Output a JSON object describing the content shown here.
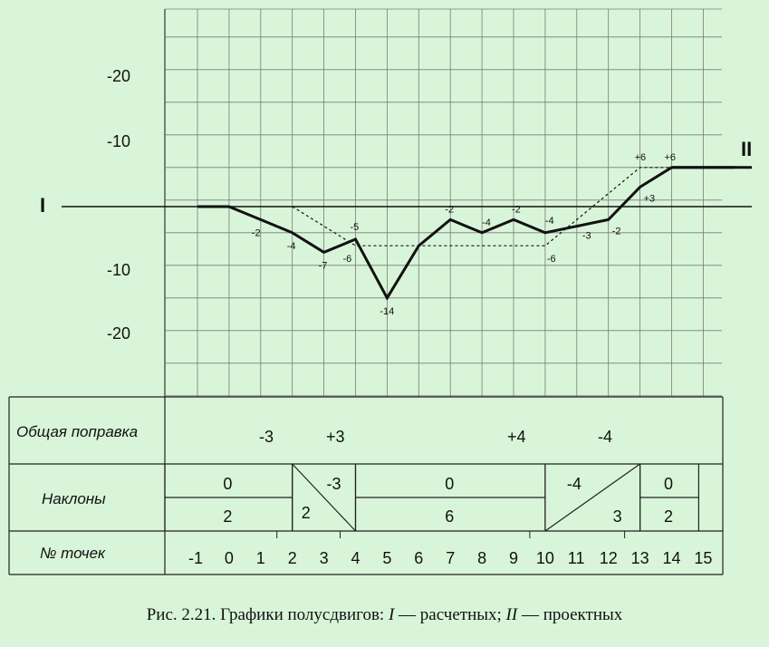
{
  "chart_data": {
    "type": "line",
    "y_ticks": [
      "-20",
      "-10",
      "-10",
      "-20"
    ],
    "line_labels": {
      "calculated": "I",
      "design": "II"
    },
    "x": [
      -1,
      0,
      1,
      2,
      3,
      4,
      5,
      6,
      7,
      8,
      9,
      10,
      11,
      12,
      13,
      14,
      15
    ],
    "series": [
      {
        "name": "I",
        "style": "solid",
        "points": [
          [
            -1,
            0
          ],
          [
            0,
            0
          ],
          [
            1,
            -2
          ],
          [
            2,
            -4
          ],
          [
            3,
            -7
          ],
          [
            4,
            -5
          ],
          [
            5,
            -14
          ],
          [
            6,
            -6
          ],
          [
            7,
            -2
          ],
          [
            8,
            -4
          ],
          [
            9,
            -2
          ],
          [
            10,
            -4
          ],
          [
            11,
            -3
          ],
          [
            12,
            -2
          ],
          [
            13,
            3
          ],
          [
            14,
            6
          ],
          [
            15,
            6
          ],
          [
            16,
            6
          ]
        ],
        "point_labels": [
          {
            "x": 1,
            "y": -2,
            "text": "-2"
          },
          {
            "x": 2,
            "y": -4,
            "text": "-4"
          },
          {
            "x": 3,
            "y": -7,
            "text": "-7"
          },
          {
            "x": 4,
            "y": -5,
            "text": "-5"
          },
          {
            "x": 5,
            "y": -14,
            "text": "-14"
          },
          {
            "x": 7,
            "y": -2,
            "text": "-2"
          },
          {
            "x": 8,
            "y": -4,
            "text": "-4"
          },
          {
            "x": 9,
            "y": -2,
            "text": "-2"
          },
          {
            "x": 10,
            "y": -4,
            "text": "-4"
          },
          {
            "x": 11,
            "y": -3,
            "text": "-3"
          },
          {
            "x": 12,
            "y": -2,
            "text": "-2"
          },
          {
            "x": 13,
            "y": 3,
            "text": "+3"
          },
          {
            "x": 14,
            "y": 6,
            "text": "+6"
          }
        ]
      },
      {
        "name": "II",
        "style": "dashed",
        "points": [
          [
            2,
            0
          ],
          [
            4,
            -6
          ],
          [
            10,
            -6
          ],
          [
            13,
            6
          ],
          [
            14,
            6
          ]
        ],
        "point_labels": [
          {
            "x": 4,
            "y": -6,
            "text": "-6"
          },
          {
            "x": 10,
            "y": -6,
            "text": "-6"
          },
          {
            "x": 13,
            "y": 6,
            "text": "+6"
          }
        ]
      }
    ],
    "table": {
      "row_labels": {
        "total": "Общая поправка",
        "slopes": "Наклоны",
        "points": "№ точек"
      },
      "total_corrections": [
        {
          "at": 2,
          "text": "-3"
        },
        {
          "at": 4,
          "text": "+3"
        },
        {
          "at": 10,
          "text": "-4"
        },
        {
          "at": 9,
          "text": "+4"
        }
      ],
      "slopes": [
        {
          "from": -1,
          "to": 2,
          "kind": "split",
          "top": "0",
          "bottom": "2"
        },
        {
          "from": 2,
          "to": 4,
          "kind": "diag-down",
          "top": "-3",
          "bottom": "2"
        },
        {
          "from": 4,
          "to": 10,
          "kind": "split",
          "top": "0",
          "bottom": "6"
        },
        {
          "from": 10,
          "to": 13,
          "kind": "diag-up",
          "top": "-4",
          "bottom": "3"
        },
        {
          "from": 13,
          "to": 15,
          "kind": "split",
          "top": "0",
          "bottom": "2"
        }
      ],
      "point_numbers": [
        "-1",
        "0",
        "1",
        "2",
        "3",
        "4",
        "5",
        "6",
        "7",
        "8",
        "9",
        "10",
        "11",
        "12",
        "13",
        "14",
        "15"
      ]
    }
  },
  "caption": {
    "prefix": "Рис. 2.21. Графики полусдвигов: ",
    "i": "I",
    "i_text": " — расчетных; ",
    "ii": "II",
    "ii_text": " — проектных"
  }
}
